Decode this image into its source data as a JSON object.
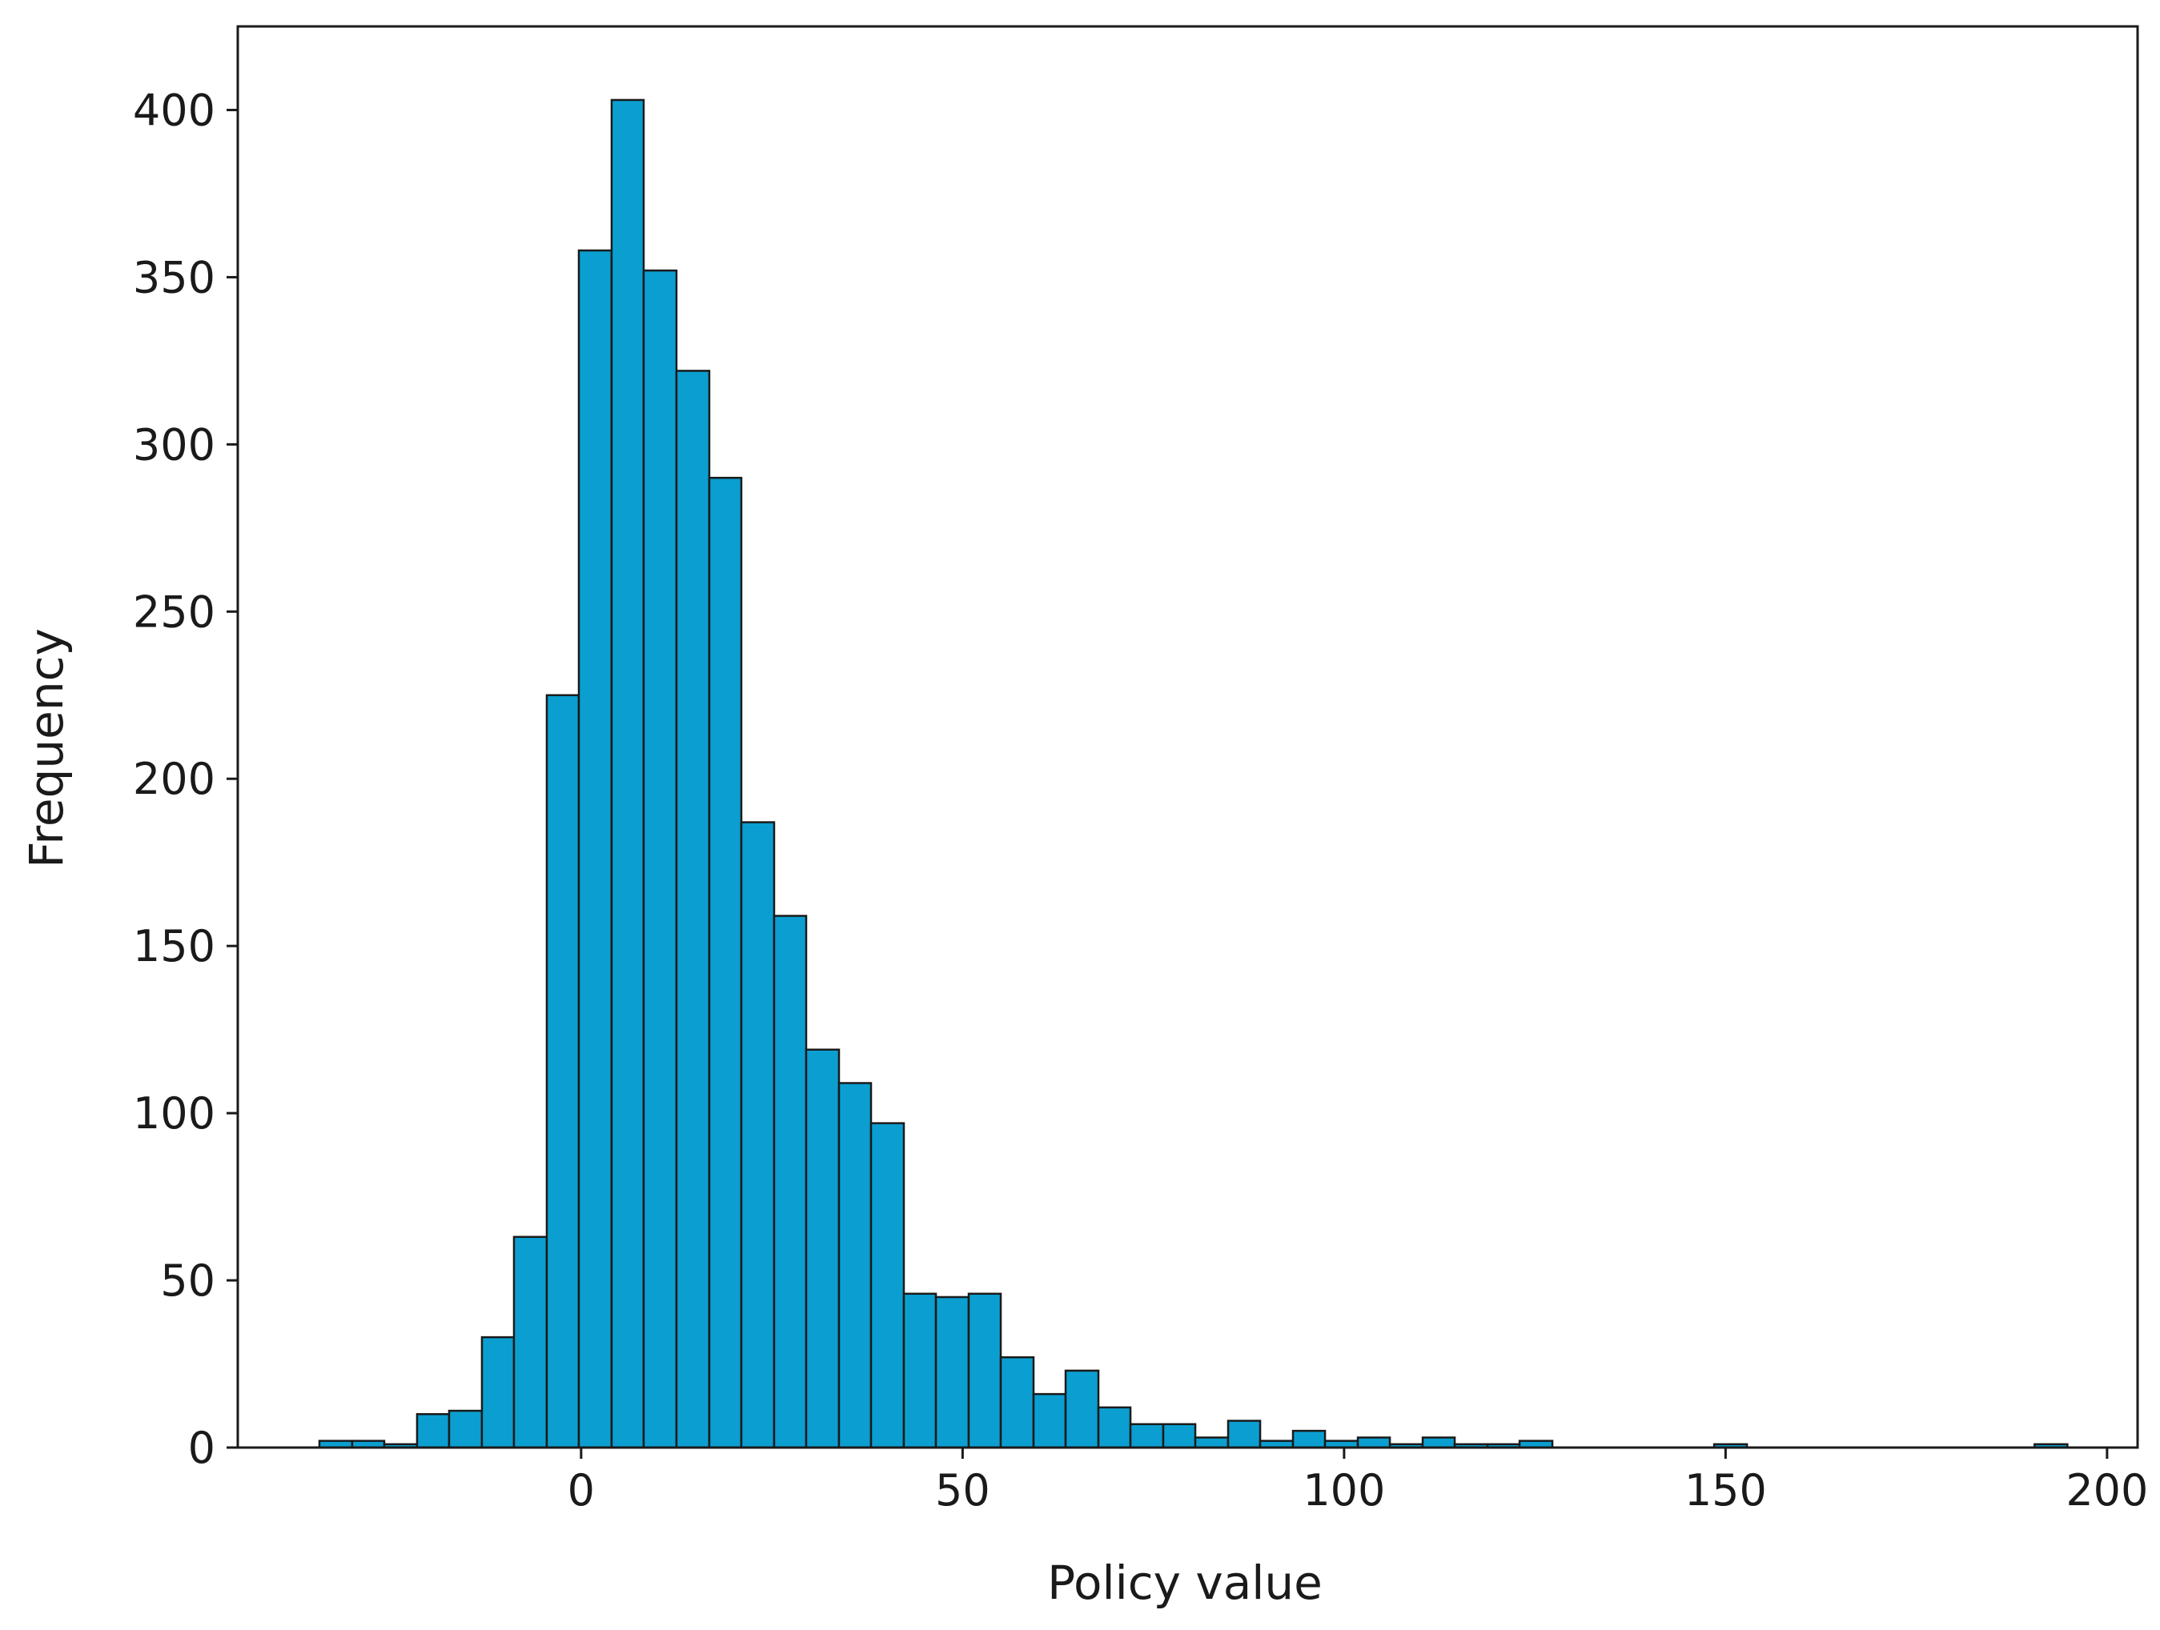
{
  "chart_data": {
    "type": "bar",
    "subtype": "histogram",
    "title": "",
    "xlabel": "Policy value",
    "ylabel": "Frequency",
    "xlim": [
      -45,
      204
    ],
    "ylim": [
      0,
      425
    ],
    "xticks": [
      0,
      50,
      100,
      150,
      200
    ],
    "yticks": [
      0,
      50,
      100,
      150,
      200,
      250,
      300,
      350,
      400
    ],
    "bar_color": "#0a9fd0",
    "edge_color": "#1a1a1a",
    "grid": false,
    "legend": "none",
    "bins": [
      {
        "x0": -34.3,
        "x1": -30.0,
        "count": 2
      },
      {
        "x0": -30.0,
        "x1": -25.8,
        "count": 2
      },
      {
        "x0": -25.8,
        "x1": -21.5,
        "count": 1
      },
      {
        "x0": -21.5,
        "x1": -17.3,
        "count": 10
      },
      {
        "x0": -17.3,
        "x1": -13.0,
        "count": 11
      },
      {
        "x0": -13.0,
        "x1": -8.8,
        "count": 33
      },
      {
        "x0": -8.8,
        "x1": -4.5,
        "count": 63
      },
      {
        "x0": -4.5,
        "x1": -0.3,
        "count": 225
      },
      {
        "x0": -0.3,
        "x1": 4.0,
        "count": 358
      },
      {
        "x0": 4.0,
        "x1": 8.2,
        "count": 403
      },
      {
        "x0": 8.2,
        "x1": 12.5,
        "count": 352
      },
      {
        "x0": 12.5,
        "x1": 16.8,
        "count": 322
      },
      {
        "x0": 16.8,
        "x1": 21.0,
        "count": 290
      },
      {
        "x0": 21.0,
        "x1": 25.3,
        "count": 187
      },
      {
        "x0": 25.3,
        "x1": 29.5,
        "count": 159
      },
      {
        "x0": 29.5,
        "x1": 33.8,
        "count": 119
      },
      {
        "x0": 33.8,
        "x1": 38.0,
        "count": 109
      },
      {
        "x0": 38.0,
        "x1": 42.3,
        "count": 97
      },
      {
        "x0": 42.3,
        "x1": 46.5,
        "count": 46
      },
      {
        "x0": 46.5,
        "x1": 50.8,
        "count": 45
      },
      {
        "x0": 50.8,
        "x1": 55.0,
        "count": 46
      },
      {
        "x0": 55.0,
        "x1": 59.3,
        "count": 27
      },
      {
        "x0": 59.3,
        "x1": 63.5,
        "count": 16
      },
      {
        "x0": 63.5,
        "x1": 67.8,
        "count": 23
      },
      {
        "x0": 67.8,
        "x1": 72.0,
        "count": 12
      },
      {
        "x0": 72.0,
        "x1": 76.3,
        "count": 7
      },
      {
        "x0": 76.3,
        "x1": 80.5,
        "count": 7
      },
      {
        "x0": 80.5,
        "x1": 84.8,
        "count": 3
      },
      {
        "x0": 84.8,
        "x1": 89.0,
        "count": 8
      },
      {
        "x0": 89.0,
        "x1": 93.3,
        "count": 2
      },
      {
        "x0": 93.3,
        "x1": 97.5,
        "count": 5
      },
      {
        "x0": 97.5,
        "x1": 101.8,
        "count": 2
      },
      {
        "x0": 101.8,
        "x1": 106.0,
        "count": 3
      },
      {
        "x0": 106.0,
        "x1": 110.3,
        "count": 1
      },
      {
        "x0": 110.3,
        "x1": 114.5,
        "count": 3
      },
      {
        "x0": 114.5,
        "x1": 118.8,
        "count": 1
      },
      {
        "x0": 118.8,
        "x1": 123.0,
        "count": 1
      },
      {
        "x0": 123.0,
        "x1": 127.3,
        "count": 2
      },
      {
        "x0": 148.5,
        "x1": 152.8,
        "count": 1
      },
      {
        "x0": 190.5,
        "x1": 194.8,
        "count": 1
      }
    ]
  }
}
